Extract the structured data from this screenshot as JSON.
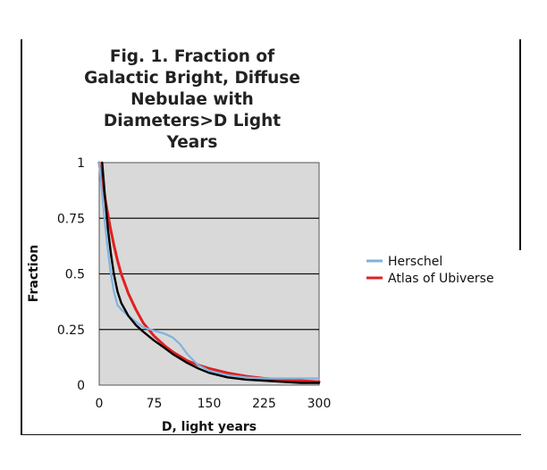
{
  "chart_data": {
    "type": "line",
    "title": "Fig. 1. Fraction of Galactic Bright, Diffuse Nebulae with Diameters>D Light Years",
    "title_lines": [
      "Fig. 1. Fraction of",
      "Galactic Bright, Diffuse",
      "Nebulae with",
      "Diameters>D Light",
      "Years"
    ],
    "xlabel": "D, light years",
    "ylabel": "Fraction",
    "xlim": [
      0,
      300
    ],
    "ylim": [
      0,
      1
    ],
    "xticks": [
      "0",
      "75",
      "150",
      "225",
      "300"
    ],
    "yticks": [
      "0",
      "0.25",
      "0.5",
      "0.75",
      "1"
    ],
    "grid": "horizontal",
    "legend": "right",
    "plot_background": "#d9d9d9",
    "series": [
      {
        "name": "Herschel",
        "color": "#7fb3de",
        "x": [
          0,
          5,
          10,
          15,
          20,
          25,
          30,
          40,
          50,
          60,
          75,
          90,
          100,
          110,
          120,
          135,
          150,
          175,
          200,
          225,
          250,
          275,
          300
        ],
        "y": [
          1.0,
          0.82,
          0.66,
          0.52,
          0.42,
          0.36,
          0.34,
          0.31,
          0.285,
          0.26,
          0.245,
          0.23,
          0.215,
          0.185,
          0.14,
          0.09,
          0.065,
          0.045,
          0.035,
          0.03,
          0.03,
          0.03,
          0.03
        ]
      },
      {
        "name": "Atlas of Ubiverse",
        "color": "#e02020",
        "x": [
          0,
          5,
          10,
          15,
          20,
          25,
          30,
          40,
          50,
          60,
          75,
          90,
          100,
          110,
          120,
          135,
          150,
          175,
          200,
          225,
          250,
          275,
          300
        ],
        "y": [
          1.0,
          0.9,
          0.8,
          0.71,
          0.63,
          0.56,
          0.5,
          0.41,
          0.34,
          0.28,
          0.22,
          0.175,
          0.15,
          0.13,
          0.11,
          0.09,
          0.075,
          0.055,
          0.04,
          0.03,
          0.025,
          0.02,
          0.015
        ]
      },
      {
        "name": "",
        "color": "#000000",
        "x": [
          4,
          8,
          12,
          16,
          20,
          25,
          30,
          40,
          50,
          60,
          75,
          90,
          100,
          110,
          120,
          135,
          150,
          175,
          200,
          225,
          250,
          275,
          300
        ],
        "y": [
          1.0,
          0.84,
          0.7,
          0.59,
          0.5,
          0.42,
          0.37,
          0.31,
          0.27,
          0.24,
          0.2,
          0.165,
          0.14,
          0.12,
          0.1,
          0.075,
          0.055,
          0.035,
          0.025,
          0.02,
          0.015,
          0.01,
          0.01
        ]
      }
    ]
  }
}
